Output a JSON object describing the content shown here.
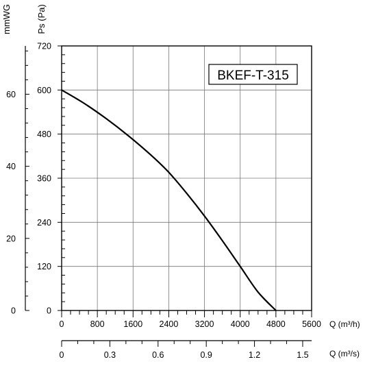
{
  "chart_data": {
    "type": "line",
    "model_label": "BKEF-T-315",
    "series": [
      {
        "x": [
          0,
          500,
          1000,
          1500,
          2000,
          2400,
          2800,
          3200,
          3600,
          4000,
          4400,
          4800
        ],
        "y": [
          600,
          564,
          522,
          475,
          423,
          376,
          319,
          257,
          190,
          120,
          50,
          0
        ]
      }
    ],
    "axes": {
      "pa_axis_label": "Ps (Pa)",
      "pa_ticks": [
        "0",
        "120",
        "240",
        "360",
        "480",
        "600",
        "720"
      ],
      "pa_range": [
        0,
        720
      ],
      "mmwg_axis_label": "mmWG",
      "mmwg_ticks": [
        "0",
        "20",
        "40",
        "60"
      ],
      "mmwg_range": [
        0,
        73.4
      ],
      "q_m3h_label": "Q (m³/h)",
      "q_m3h_ticks": [
        "0",
        "800",
        "1600",
        "2400",
        "3200",
        "4000",
        "4800",
        "5600"
      ],
      "q_m3h_range": [
        0,
        5600
      ],
      "q_m3s_label": "Q (m³/s)",
      "q_m3s_ticks": [
        "0",
        "0.3",
        "0.6",
        "0.9",
        "1.2",
        "1.5"
      ],
      "q_m3s_range": [
        0,
        1.5556
      ]
    },
    "grid": true,
    "legend": "none"
  }
}
